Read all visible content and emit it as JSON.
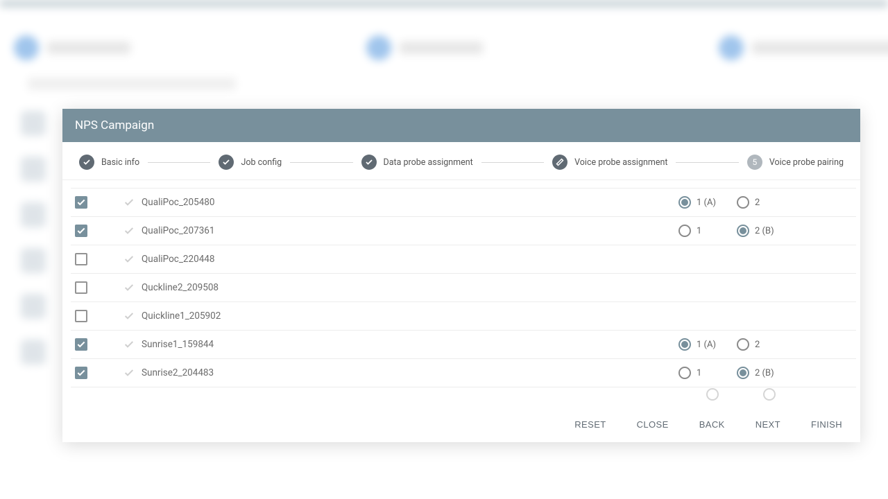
{
  "colors": {
    "header_bg": "#78909c",
    "accent": "#78909c",
    "step_done": "#606a73",
    "step_current": "#b0b7bd",
    "text_muted": "#6b6b6b",
    "border": "#ececec"
  },
  "dialog": {
    "title": "NPS Campaign"
  },
  "stepper": {
    "steps": [
      {
        "label": "Basic info",
        "state": "done"
      },
      {
        "label": "Job config",
        "state": "done"
      },
      {
        "label": "Data probe assignment",
        "state": "done"
      },
      {
        "label": "Voice probe assignment",
        "state": "done"
      },
      {
        "label": "Voice probe pairing",
        "state": "current",
        "num": "5"
      }
    ]
  },
  "rows": [
    {
      "id": "r1",
      "name": "QualiPoc_205480",
      "checked": true,
      "radio1": "1 (A)",
      "radio2": "2",
      "selected": 1
    },
    {
      "id": "r2",
      "name": "QualiPoc_207361",
      "checked": true,
      "radio1": "1",
      "radio2": "2 (B)",
      "selected": 2
    },
    {
      "id": "r3",
      "name": "QualiPoc_220448",
      "checked": false
    },
    {
      "id": "r4",
      "name": "Quckline2_209508",
      "checked": false
    },
    {
      "id": "r5",
      "name": "Quickline1_205902",
      "checked": false
    },
    {
      "id": "r6",
      "name": "Sunrise1_159844",
      "checked": true,
      "radio1": "1 (A)",
      "radio2": "2",
      "selected": 1
    },
    {
      "id": "r7",
      "name": "Sunrise2_204483",
      "checked": true,
      "radio1": "1",
      "radio2": "2 (B)",
      "selected": 2
    }
  ],
  "footer": {
    "reset": "RESET",
    "close": "CLOSE",
    "back": "BACK",
    "next": "NEXT",
    "finish": "FINISH"
  }
}
